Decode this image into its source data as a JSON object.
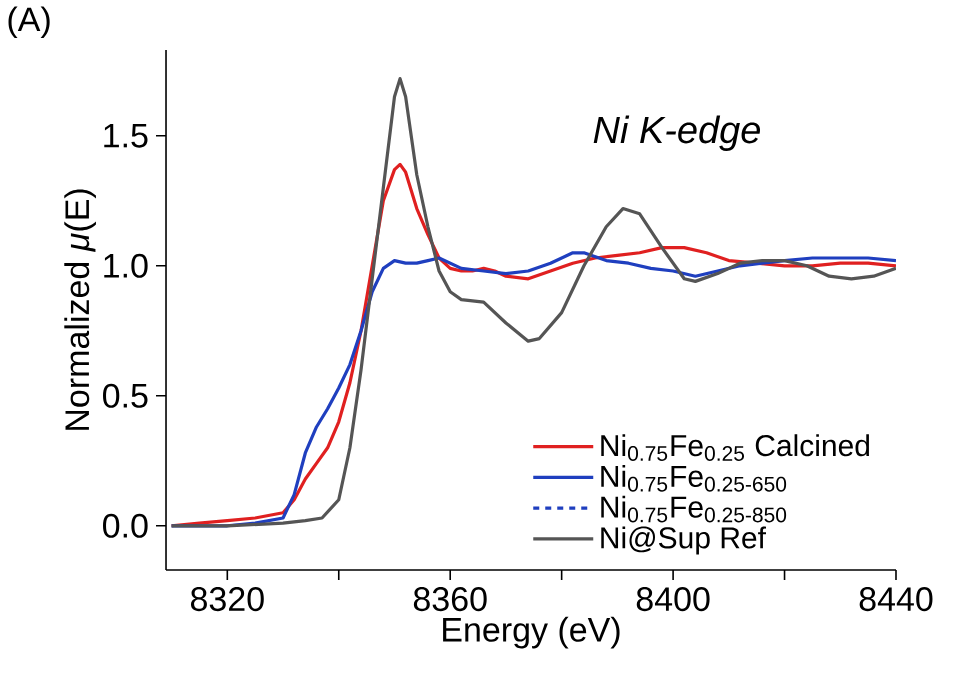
{
  "chart_data": {
    "type": "line",
    "xlabel": "Energy (eV)",
    "ylabel": "Normalized *μ*(E)",
    "annotations": [
      "Ni K-edge",
      "(A)"
    ],
    "xlim": [
      8309,
      8440
    ],
    "xticks": [
      8320,
      {
        "value": 8340,
        "label": null
      },
      8360,
      {
        "value": 8380,
        "label": null
      },
      8400,
      {
        "value": 8420,
        "label": null
      },
      8440
    ],
    "ylim": [
      -0.17,
      1.83
    ],
    "yticks": [
      {
        "value": 0,
        "label": "0.0"
      },
      {
        "value": 0.5,
        "label": "0.5"
      },
      {
        "value": 1.0,
        "label": "1.0"
      },
      {
        "value": 1.5,
        "label": "1.5"
      }
    ],
    "grid": false,
    "legend": "bottom right",
    "marker": "none",
    "series": [
      {
        "name": "Ni$_{0.75}$Fe$_{0.25}$ Calcined",
        "color": "#e02020",
        "line_style": "solid",
        "x": [
          8310,
          8315,
          8320,
          8325,
          8330,
          8332,
          8334,
          8336,
          8338,
          8340,
          8342,
          8344,
          8346,
          8348,
          8350,
          8351,
          8352,
          8354,
          8356,
          8358,
          8360,
          8362,
          8364,
          8366,
          8368,
          8370,
          8374,
          8378,
          8382,
          8386,
          8390,
          8394,
          8398,
          8402,
          8406,
          8410,
          8415,
          8420,
          8425,
          8430,
          8435,
          8440
        ],
        "values": [
          0.0,
          0.01,
          0.02,
          0.03,
          0.05,
          0.1,
          0.18,
          0.24,
          0.3,
          0.4,
          0.55,
          0.75,
          1.0,
          1.25,
          1.37,
          1.39,
          1.36,
          1.22,
          1.12,
          1.03,
          0.99,
          0.98,
          0.98,
          0.99,
          0.98,
          0.96,
          0.95,
          0.98,
          1.01,
          1.03,
          1.04,
          1.05,
          1.07,
          1.07,
          1.05,
          1.02,
          1.01,
          1.0,
          1.0,
          1.01,
          1.01,
          1.0
        ]
      },
      {
        "name": "Ni$_{0.75}$Fe$_{0.25-650}$",
        "color": "#1f3fbf",
        "line_style": "solid",
        "x": [
          8310,
          8320,
          8325,
          8330,
          8332,
          8334,
          8336,
          8338,
          8340,
          8342,
          8344,
          8346,
          8348,
          8350,
          8352,
          8354,
          8356,
          8358,
          8360,
          8362,
          8366,
          8370,
          8374,
          8378,
          8382,
          8384,
          8388,
          8392,
          8396,
          8400,
          8404,
          8408,
          8412,
          8416,
          8420,
          8425,
          8430,
          8435,
          8440
        ],
        "values": [
          0.0,
          0.0,
          0.01,
          0.03,
          0.12,
          0.28,
          0.38,
          0.45,
          0.53,
          0.62,
          0.75,
          0.9,
          0.99,
          1.02,
          1.01,
          1.01,
          1.02,
          1.03,
          1.01,
          0.99,
          0.98,
          0.97,
          0.98,
          1.01,
          1.05,
          1.05,
          1.02,
          1.01,
          0.99,
          0.98,
          0.96,
          0.98,
          1.0,
          1.01,
          1.02,
          1.03,
          1.03,
          1.03,
          1.02
        ]
      },
      {
        "name": "Ni$_{0.75}$Fe$_{0.25-850}$",
        "color": "#1f3fbf",
        "line_style": "dashed"
      },
      {
        "name": "Ni@Sup Ref",
        "color": "#555555",
        "line_style": "solid",
        "x": [
          8310,
          8320,
          8330,
          8334,
          8337,
          8340,
          8342,
          8344,
          8346,
          8348,
          8350,
          8351,
          8352,
          8354,
          8356,
          8358,
          8360,
          8362,
          8366,
          8370,
          8374,
          8376,
          8380,
          8384,
          8388,
          8391,
          8394,
          8398,
          8402,
          8404,
          8408,
          8412,
          8416,
          8420,
          8424,
          8428,
          8432,
          8436,
          8440
        ],
        "values": [
          0.0,
          0.0,
          0.01,
          0.02,
          0.03,
          0.1,
          0.3,
          0.6,
          0.95,
          1.3,
          1.65,
          1.72,
          1.65,
          1.35,
          1.15,
          0.98,
          0.9,
          0.87,
          0.86,
          0.78,
          0.71,
          0.72,
          0.82,
          1.0,
          1.15,
          1.22,
          1.2,
          1.07,
          0.95,
          0.94,
          0.97,
          1.01,
          1.02,
          1.02,
          1.0,
          0.96,
          0.95,
          0.96,
          0.99
        ]
      }
    ]
  }
}
